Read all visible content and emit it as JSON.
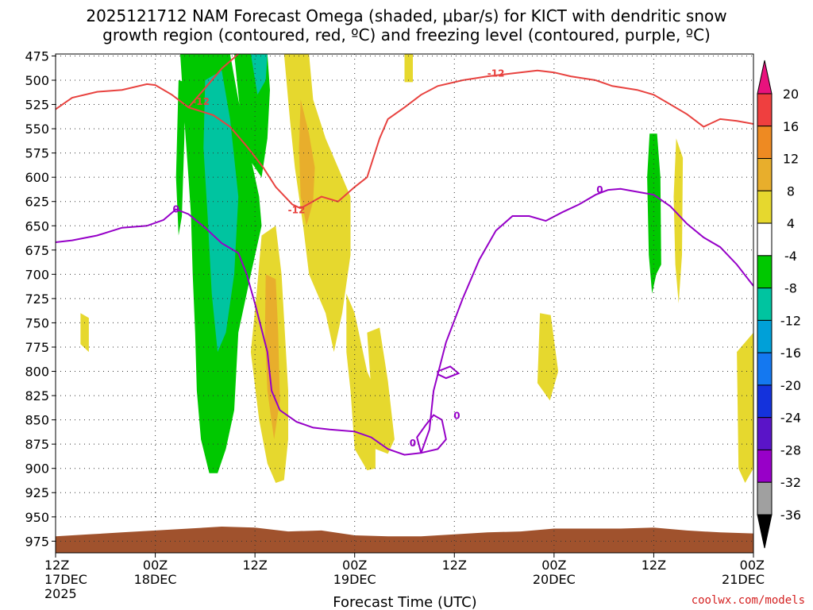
{
  "chart_data": {
    "type": "time-height contour",
    "title_line1": "2025121712 NAM Forecast Omega (shaded, μbar/s) for KICT with dendritic snow",
    "title_line2": "growth region (contoured, red, ºC) and freezing level (contoured, purple, ºC)",
    "xlabel": "Forecast Time (UTC)",
    "credit": "coolwx.com/models",
    "x_range_hours": [
      0,
      84
    ],
    "x_ticks": [
      {
        "hour": 0,
        "l1": "12Z",
        "l2": "17DEC",
        "l3": "2025"
      },
      {
        "hour": 12,
        "l1": "00Z",
        "l2": "18DEC",
        "l3": ""
      },
      {
        "hour": 24,
        "l1": "12Z",
        "l2": "",
        "l3": ""
      },
      {
        "hour": 36,
        "l1": "00Z",
        "l2": "19DEC",
        "l3": ""
      },
      {
        "hour": 48,
        "l1": "12Z",
        "l2": "",
        "l3": ""
      },
      {
        "hour": 60,
        "l1": "00Z",
        "l2": "20DEC",
        "l3": ""
      },
      {
        "hour": 72,
        "l1": "12Z",
        "l2": "",
        "l3": ""
      },
      {
        "hour": 84,
        "l1": "00Z",
        "l2": "21DEC",
        "l3": ""
      }
    ],
    "y_ticks": [
      475,
      500,
      525,
      550,
      575,
      600,
      625,
      650,
      675,
      700,
      725,
      750,
      775,
      800,
      825,
      850,
      875,
      900,
      925,
      950,
      975
    ],
    "y_range_mb": [
      473,
      987
    ],
    "colorbar": {
      "labels": [
        "20",
        "16",
        "12",
        "8",
        "4",
        "-4",
        "-8",
        "-12",
        "-16",
        "-20",
        "-24",
        "-28",
        "-32",
        "-36"
      ],
      "colors": [
        "#e8127d",
        "#ef3f3f",
        "#ee8a22",
        "#e8ae2c",
        "#e6d82e",
        "#ffffff",
        "#00c800",
        "#00c4a0",
        "#00a0d8",
        "#1478f0",
        "#1432dc",
        "#5a14c8",
        "#9800c8",
        "#a0a0a0",
        "#000000"
      ]
    },
    "freezing_level_0C": {
      "color": "#9600c8",
      "label": "0",
      "points": [
        [
          0,
          667
        ],
        [
          2,
          665
        ],
        [
          5,
          660
        ],
        [
          8,
          652
        ],
        [
          11,
          650
        ],
        [
          13,
          644
        ],
        [
          14.5,
          633
        ],
        [
          16,
          638
        ],
        [
          18,
          652
        ],
        [
          20,
          668
        ],
        [
          22,
          678
        ],
        [
          23,
          700
        ],
        [
          24,
          730
        ],
        [
          25.5,
          780
        ],
        [
          26,
          820
        ],
        [
          27,
          840
        ],
        [
          29,
          852
        ],
        [
          31,
          858
        ],
        [
          33,
          860
        ],
        [
          36,
          862
        ],
        [
          38,
          868
        ],
        [
          40,
          880
        ],
        [
          42,
          886
        ],
        [
          44,
          884
        ],
        [
          45,
          860
        ],
        [
          45.5,
          820
        ],
        [
          47,
          770
        ],
        [
          49,
          725
        ],
        [
          51,
          685
        ],
        [
          53,
          655
        ],
        [
          55,
          640
        ],
        [
          57,
          640
        ],
        [
          59,
          645
        ],
        [
          61,
          636
        ],
        [
          63,
          628
        ],
        [
          65,
          618
        ],
        [
          66.5,
          613
        ],
        [
          68,
          612
        ],
        [
          70,
          615
        ],
        [
          72,
          618
        ],
        [
          74,
          630
        ],
        [
          76,
          648
        ],
        [
          78,
          662
        ],
        [
          80,
          672
        ],
        [
          82,
          690
        ],
        [
          84,
          712
        ]
      ],
      "small_loop": [
        [
          46,
          800
        ],
        [
          47.5,
          795
        ],
        [
          48.5,
          802
        ],
        [
          47,
          807
        ],
        [
          46,
          803
        ],
        [
          46,
          800
        ]
      ],
      "low_loop": [
        [
          44,
          884
        ],
        [
          46,
          880
        ],
        [
          47,
          870
        ],
        [
          46.5,
          850
        ],
        [
          45.5,
          845
        ],
        [
          44.5,
          856
        ],
        [
          43.5,
          868
        ],
        [
          44,
          884
        ]
      ],
      "label_positions": [
        [
          14.5,
          633
        ],
        [
          43,
          874
        ],
        [
          65.5,
          613
        ],
        [
          48.3,
          846
        ]
      ]
    },
    "dgz_minus12C": {
      "color": "#e8423f",
      "label": "-12",
      "points_left": [
        [
          0,
          530
        ],
        [
          2,
          518
        ],
        [
          5,
          512
        ],
        [
          8,
          510
        ],
        [
          11,
          504
        ],
        [
          12,
          505
        ],
        [
          14,
          515
        ],
        [
          16,
          528
        ],
        [
          19,
          536
        ],
        [
          21,
          548
        ],
        [
          23,
          568
        ],
        [
          25,
          590
        ],
        [
          26.5,
          610
        ],
        [
          28.5,
          628
        ],
        [
          29.5,
          632
        ]
      ],
      "points_right": [
        [
          29.5,
          632
        ],
        [
          32,
          620
        ],
        [
          34,
          625
        ],
        [
          36,
          610
        ],
        [
          37.5,
          600
        ],
        [
          39,
          560
        ],
        [
          40,
          540
        ],
        [
          42,
          528
        ],
        [
          44,
          515
        ],
        [
          46,
          506
        ],
        [
          49,
          500
        ],
        [
          52,
          496
        ],
        [
          55,
          493
        ],
        [
          58,
          490
        ],
        [
          60,
          492
        ],
        [
          62,
          496
        ],
        [
          65,
          500
        ],
        [
          67,
          506
        ],
        [
          70,
          510
        ],
        [
          72,
          515
        ],
        [
          74,
          525
        ],
        [
          76,
          535
        ],
        [
          78,
          548
        ],
        [
          80,
          540
        ],
        [
          82,
          542
        ],
        [
          84,
          545
        ]
      ],
      "points_upper": [
        [
          16,
          528
        ],
        [
          18,
          508
        ],
        [
          20,
          488
        ],
        [
          22,
          473
        ]
      ],
      "label_positions": [
        [
          17.5,
          522
        ],
        [
          29,
          634
        ],
        [
          53,
          493
        ]
      ]
    },
    "omega_positive_regions": [
      {
        "color": "#e6d82e",
        "points": [
          [
            27.5,
            473
          ],
          [
            30.5,
            473
          ],
          [
            31,
            520
          ],
          [
            32.5,
            560
          ],
          [
            34,
            590
          ],
          [
            35.5,
            620
          ],
          [
            35.5,
            680
          ],
          [
            34.5,
            740
          ],
          [
            33.5,
            780
          ],
          [
            32.5,
            740
          ],
          [
            30.5,
            700
          ],
          [
            29.8,
            650
          ],
          [
            28.8,
            590
          ],
          [
            28.2,
            540
          ]
        ]
      },
      {
        "color": "#e8ae2c",
        "points": [
          [
            29.5,
            520
          ],
          [
            30.5,
            555
          ],
          [
            31.2,
            590
          ],
          [
            31,
            625
          ],
          [
            30.2,
            650
          ],
          [
            29.5,
            620
          ],
          [
            29.3,
            570
          ]
        ]
      },
      {
        "color": "#e6d82e",
        "points": [
          [
            24.8,
            660
          ],
          [
            26.5,
            650
          ],
          [
            27.2,
            700
          ],
          [
            27.6,
            760
          ],
          [
            28,
            820
          ],
          [
            28,
            870
          ],
          [
            27.5,
            912
          ],
          [
            26.5,
            915
          ],
          [
            25.5,
            895
          ],
          [
            24.5,
            850
          ],
          [
            23.5,
            780
          ],
          [
            24.2,
            720
          ]
        ]
      },
      {
        "color": "#e8ae2c",
        "points": [
          [
            25.3,
            700
          ],
          [
            26.5,
            705
          ],
          [
            26.8,
            760
          ],
          [
            27,
            830
          ],
          [
            26.3,
            870
          ],
          [
            25.5,
            820
          ],
          [
            25.2,
            760
          ]
        ]
      },
      {
        "color": "#e6d82e",
        "points": [
          [
            35,
            720
          ],
          [
            36,
            740
          ],
          [
            37.5,
            800
          ],
          [
            38.5,
            820
          ],
          [
            38.5,
            900
          ],
          [
            37.5,
            902
          ],
          [
            36,
            880
          ],
          [
            35.5,
            820
          ],
          [
            35,
            780
          ]
        ]
      },
      {
        "color": "#e6d82e",
        "points": [
          [
            37.5,
            760
          ],
          [
            39,
            755
          ],
          [
            40,
            810
          ],
          [
            40.8,
            870
          ],
          [
            40,
            885
          ],
          [
            38.5,
            880
          ],
          [
            38,
            820
          ]
        ]
      },
      {
        "color": "#e6d82e",
        "points": [
          [
            42,
            473
          ],
          [
            43,
            473
          ],
          [
            43,
            502
          ],
          [
            42,
            502
          ]
        ]
      },
      {
        "color": "#e6d82e",
        "points": [
          [
            3,
            740
          ],
          [
            4,
            745
          ],
          [
            4,
            780
          ],
          [
            3,
            772
          ]
        ]
      },
      {
        "color": "#e6d82e",
        "points": [
          [
            58.3,
            740
          ],
          [
            59.6,
            742
          ],
          [
            60.5,
            800
          ],
          [
            59.5,
            830
          ],
          [
            58,
            812
          ]
        ]
      },
      {
        "color": "#e6d82e",
        "points": [
          [
            74.7,
            560
          ],
          [
            75.5,
            580
          ],
          [
            75.4,
            680
          ],
          [
            75,
            730
          ],
          [
            74.6,
            690
          ],
          [
            74.4,
            620
          ]
        ]
      },
      {
        "color": "#e6d82e",
        "points": [
          [
            82,
            780
          ],
          [
            84,
            760
          ],
          [
            84,
            900
          ],
          [
            83,
            915
          ],
          [
            82.2,
            900
          ]
        ]
      }
    ],
    "omega_negative_regions": [
      {
        "color": "#00c800",
        "points": [
          [
            15,
            473
          ],
          [
            21,
            473
          ],
          [
            22,
            520
          ],
          [
            23.5,
            580
          ],
          [
            24.5,
            620
          ],
          [
            24.8,
            650
          ],
          [
            23.5,
            700
          ],
          [
            22,
            760
          ],
          [
            21.5,
            840
          ],
          [
            20.5,
            880
          ],
          [
            19.5,
            905
          ],
          [
            18.5,
            905
          ],
          [
            17.5,
            870
          ],
          [
            17,
            820
          ],
          [
            16.8,
            760
          ],
          [
            16.5,
            700
          ],
          [
            16.3,
            640
          ],
          [
            16,
            600
          ],
          [
            15.5,
            540
          ]
        ]
      },
      {
        "color": "#00c4a0",
        "points": [
          [
            18,
            500
          ],
          [
            20,
            490
          ],
          [
            21,
            540
          ],
          [
            22,
            620
          ],
          [
            21.5,
            700
          ],
          [
            20.5,
            760
          ],
          [
            19.5,
            780
          ],
          [
            18.8,
            720
          ],
          [
            18.3,
            640
          ],
          [
            17.8,
            570
          ]
        ]
      },
      {
        "color": "#00c800",
        "points": [
          [
            21.5,
            473
          ],
          [
            25.5,
            473
          ],
          [
            25.8,
            510
          ],
          [
            25.5,
            560
          ],
          [
            24.8,
            600
          ],
          [
            23.2,
            580
          ],
          [
            22.3,
            540
          ]
        ]
      },
      {
        "color": "#00c4a0",
        "points": [
          [
            23.5,
            473
          ],
          [
            25.5,
            473
          ],
          [
            25.3,
            500
          ],
          [
            24.3,
            515
          ]
        ]
      },
      {
        "color": "#00c800",
        "points": [
          [
            14.8,
            500
          ],
          [
            15.6,
            502
          ],
          [
            15.5,
            560
          ],
          [
            15.2,
            640
          ],
          [
            14.8,
            660
          ],
          [
            14.5,
            600
          ]
        ]
      },
      {
        "color": "#00c800",
        "points": [
          [
            71.5,
            555
          ],
          [
            72.4,
            555
          ],
          [
            72.8,
            600
          ],
          [
            72.9,
            690
          ],
          [
            72.3,
            700
          ],
          [
            71.8,
            720
          ],
          [
            71.4,
            680
          ],
          [
            71.2,
            600
          ]
        ]
      }
    ],
    "terrain": {
      "color": "#a0522d",
      "points": [
        [
          0,
          970
        ],
        [
          4,
          968
        ],
        [
          8,
          966
        ],
        [
          12,
          964
        ],
        [
          16,
          962
        ],
        [
          20,
          960
        ],
        [
          24,
          961
        ],
        [
          28,
          965
        ],
        [
          32,
          964
        ],
        [
          36,
          969
        ],
        [
          40,
          970
        ],
        [
          44,
          970
        ],
        [
          48,
          968
        ],
        [
          52,
          966
        ],
        [
          56,
          965
        ],
        [
          60,
          962
        ],
        [
          64,
          962
        ],
        [
          68,
          962
        ],
        [
          72,
          961
        ],
        [
          76,
          964
        ],
        [
          80,
          966
        ],
        [
          84,
          967
        ]
      ]
    }
  }
}
